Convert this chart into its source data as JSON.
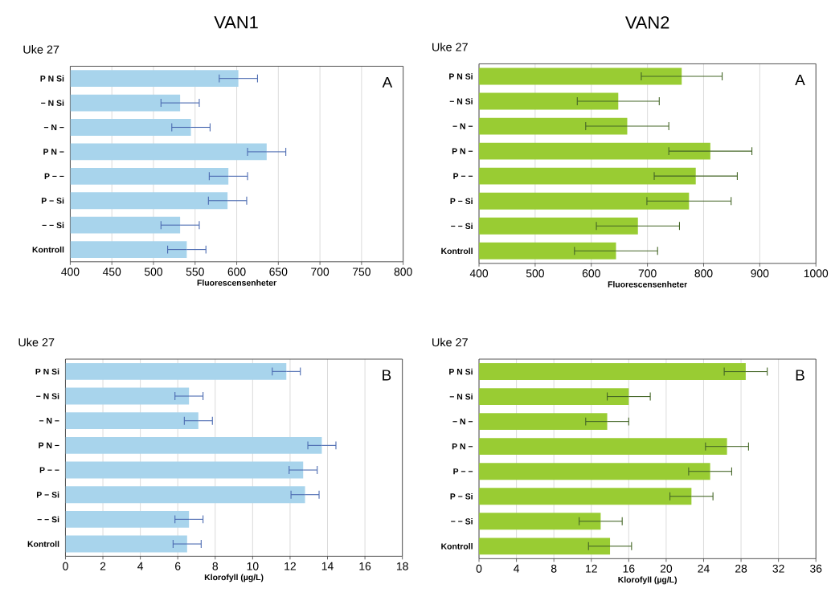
{
  "chart_data": [
    {
      "type": "bar",
      "orientation": "horizontal",
      "title": "VAN1",
      "subtitle": "Uke 27",
      "xlabel": "Fluorescensenheter",
      "annotations": [
        "A"
      ],
      "grid": "x",
      "color": "#a8d4ec",
      "categories": [
        "P N Si",
        "− N Si",
        "− N −",
        "P N −",
        "P − −",
        "P − Si",
        "− − Si",
        "Kontroll"
      ],
      "values": [
        602,
        532,
        545,
        636,
        590,
        589,
        532,
        540
      ],
      "errors": [
        23,
        23,
        23,
        23,
        23,
        23,
        23,
        23
      ],
      "xlim": [
        400,
        800
      ],
      "xticks": [
        400,
        450,
        500,
        550,
        600,
        650,
        700,
        750,
        800
      ]
    },
    {
      "type": "bar",
      "orientation": "horizontal",
      "title": "VAN2",
      "subtitle": "Uke 27",
      "xlabel": "Fluorescensenheter",
      "annotations": [
        "A"
      ],
      "grid": "x",
      "color": "#99cc33",
      "categories": [
        "P N Si",
        "− N Si",
        "− N −",
        "P N −",
        "P − −",
        "P − Si",
        "− − Si",
        "Kontroll"
      ],
      "values": [
        761,
        648,
        664,
        812,
        786,
        774,
        683,
        644
      ],
      "errors": [
        72,
        73,
        74,
        74,
        74,
        75,
        74,
        74
      ],
      "xlim": [
        400,
        1000
      ],
      "xticks": [
        400,
        500,
        600,
        700,
        800,
        900,
        1000
      ]
    },
    {
      "type": "bar",
      "orientation": "horizontal",
      "subtitle": "Uke 27",
      "xlabel": "Klorofyll (µg/L)",
      "annotations": [
        "B"
      ],
      "grid": "x",
      "color": "#a8d4ec",
      "categories": [
        "P N Si",
        "− N Si",
        "− N −",
        "P N −",
        "P − −",
        "P − Si",
        "− − Si",
        "Kontroll"
      ],
      "values": [
        11.8,
        6.6,
        7.1,
        13.7,
        12.7,
        12.8,
        6.6,
        6.5
      ],
      "errors": [
        0.75,
        0.75,
        0.75,
        0.75,
        0.75,
        0.75,
        0.75,
        0.75
      ],
      "xlim": [
        0,
        18
      ],
      "xticks": [
        0,
        2,
        4,
        6,
        8,
        10,
        12,
        14,
        16,
        18
      ]
    },
    {
      "type": "bar",
      "orientation": "horizontal",
      "subtitle": "Uke 27",
      "xlabel": "Klorofyll (µg/L)",
      "annotations": [
        "B"
      ],
      "grid": "x",
      "color": "#99cc33",
      "categories": [
        "P N Si",
        "− N Si",
        "− N −",
        "P N −",
        "P − −",
        "P − Si",
        "− − Si",
        "Kontroll"
      ],
      "values": [
        28.5,
        16.0,
        13.7,
        26.5,
        24.7,
        22.7,
        13.0,
        14.0
      ],
      "errors": [
        2.3,
        2.3,
        2.3,
        2.3,
        2.3,
        2.3,
        2.3,
        2.3
      ],
      "xlim": [
        0,
        36
      ],
      "xticks": [
        0,
        4,
        8,
        12,
        16,
        20,
        24,
        28,
        32,
        36
      ]
    }
  ]
}
